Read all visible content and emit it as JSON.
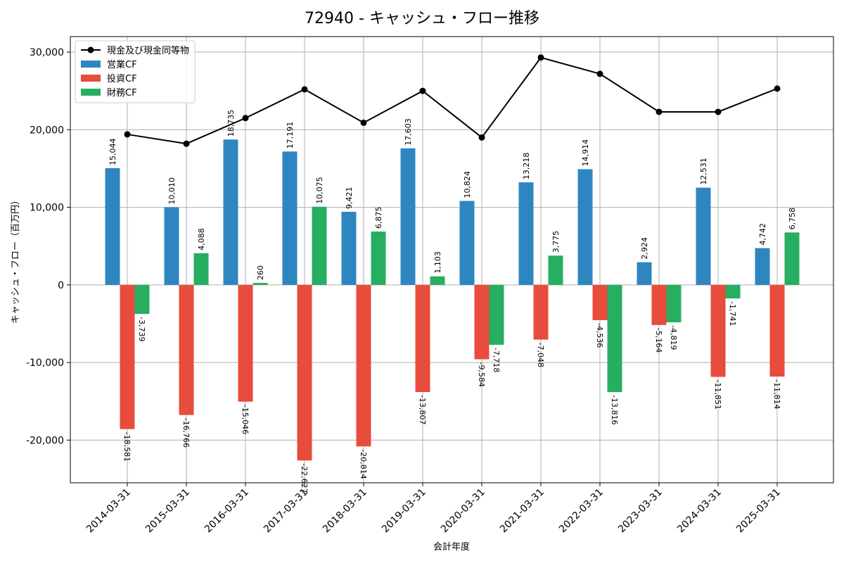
{
  "chart_data": {
    "type": "bar",
    "title": "72940 - キャッシュ・フロー推移",
    "xlabel": "会計年度",
    "ylabel": "キャッシュ・フロー（百万円）",
    "ylim": [
      -25500,
      32000
    ],
    "yticks": [
      -20000,
      -10000,
      0,
      10000,
      20000,
      30000
    ],
    "ytick_labels": [
      "-20,000",
      "-10,000",
      "0",
      "10,000",
      "20,000",
      "30,000"
    ],
    "grid": true,
    "legend_position": "top-left",
    "categories": [
      "2014-03-31",
      "2015-03-31",
      "2016-03-31",
      "2017-03-31",
      "2018-03-31",
      "2019-03-31",
      "2020-03-31",
      "2021-03-31",
      "2022-03-31",
      "2023-03-31",
      "2024-03-31",
      "2025-03-31"
    ],
    "series": [
      {
        "name": "営業CF",
        "kind": "bar",
        "color": "#2e86c1",
        "values": [
          15044,
          10010,
          18735,
          17191,
          9421,
          17603,
          10824,
          13218,
          14914,
          2924,
          12531,
          4742
        ],
        "labels": [
          "15,044",
          "10,010",
          "18,735",
          "17,191",
          "9,421",
          "17,603",
          "10,824",
          "13,218",
          "14,914",
          "2,924",
          "12,531",
          "4,742"
        ]
      },
      {
        "name": "投資CF",
        "kind": "bar",
        "color": "#e74c3c",
        "values": [
          -18581,
          -16766,
          -15046,
          -22627,
          -20814,
          -13807,
          -9584,
          -7048,
          -4536,
          -5164,
          -11851,
          -11814
        ],
        "labels": [
          "-18,581",
          "-16,766",
          "-15,046",
          "-22,627",
          "-20,814",
          "-13,807",
          "-9,584",
          "-7,048",
          "-4,536",
          "-5,164",
          "-11,851",
          "-11,814"
        ]
      },
      {
        "name": "財務CF",
        "kind": "bar",
        "color": "#27ae60",
        "values": [
          -3739,
          4088,
          260,
          10075,
          6875,
          1103,
          -7718,
          3775,
          -13816,
          -4819,
          -1741,
          6758
        ],
        "labels": [
          "-3,739",
          "4,088",
          "260",
          "10,075",
          "6,875",
          "1,103",
          "-7,718",
          "3,775",
          "-13,816",
          "-4,819",
          "-1,741",
          "6,758"
        ]
      },
      {
        "name": "現金及び現金同等物",
        "kind": "line",
        "color": "#000000",
        "values": [
          19400,
          18200,
          21500,
          25200,
          20900,
          25000,
          19000,
          29300,
          27200,
          22300,
          22300,
          25300
        ]
      }
    ]
  }
}
